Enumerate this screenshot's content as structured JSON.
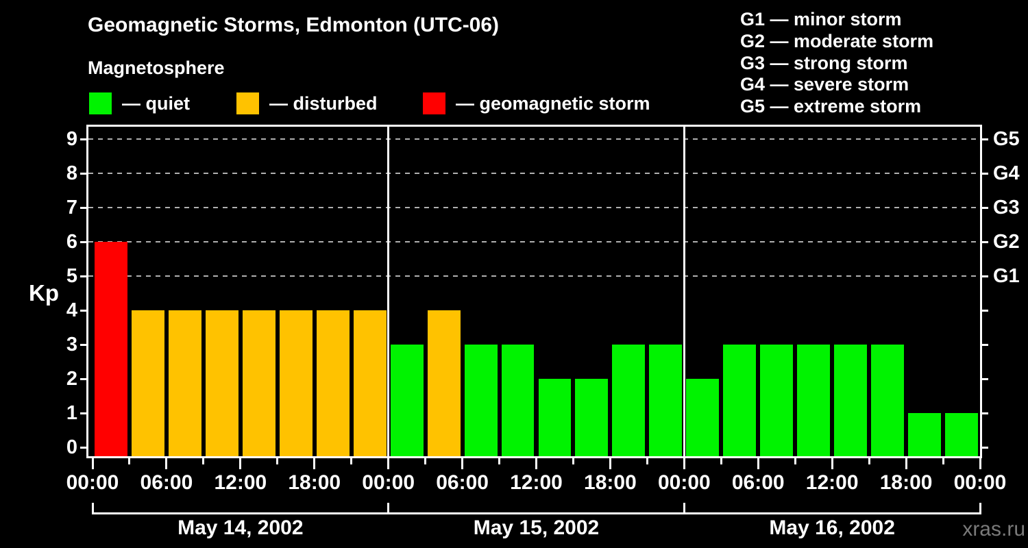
{
  "title": "Geomagnetic Storms, Edmonton (UTC-06)",
  "subtitle": "Magnetosphere",
  "legend": {
    "items": [
      {
        "state": "quiet",
        "label": "— quiet"
      },
      {
        "state": "disturbed",
        "label": "— disturbed"
      },
      {
        "state": "storm",
        "label": "— geomagnetic storm"
      }
    ]
  },
  "g_scale_legend": [
    "G1 — minor storm",
    "G2 — moderate storm",
    "G3 — strong storm",
    "G4 — severe storm",
    "G5 — extreme storm"
  ],
  "watermark": "xras.ru",
  "chart_data": {
    "type": "bar",
    "title": "Geomagnetic Storms, Edmonton (UTC-06)",
    "ylabel": "Kp",
    "ylim": [
      0,
      9
    ],
    "yticks": [
      0,
      1,
      2,
      3,
      4,
      5,
      6,
      7,
      8,
      9
    ],
    "gridlines_at_kp": [
      5,
      6,
      7,
      8,
      9
    ],
    "grid_on": true,
    "right_axis": [
      {
        "kp": 5,
        "label": "G1"
      },
      {
        "kp": 6,
        "label": "G2"
      },
      {
        "kp": 7,
        "label": "G3"
      },
      {
        "kp": 8,
        "label": "G4"
      },
      {
        "kp": 9,
        "label": "G5"
      }
    ],
    "hours_per_bar": 3,
    "major_tick_hours": 6,
    "time_labels_per_day": [
      "00:00",
      "06:00",
      "12:00",
      "18:00"
    ],
    "final_time_label": "00:00",
    "days": [
      {
        "date": "May 14, 2002",
        "values": [
          6,
          4,
          4,
          4,
          4,
          4,
          4,
          4
        ],
        "states": [
          "storm",
          "disturbed",
          "disturbed",
          "disturbed",
          "disturbed",
          "disturbed",
          "disturbed",
          "disturbed"
        ]
      },
      {
        "date": "May 15, 2002",
        "values": [
          3,
          4,
          3,
          3,
          2,
          2,
          3,
          3
        ],
        "states": [
          "quiet",
          "disturbed",
          "quiet",
          "quiet",
          "quiet",
          "quiet",
          "quiet",
          "quiet"
        ]
      },
      {
        "date": "May 16, 2002",
        "values": [
          2,
          3,
          3,
          3,
          3,
          3,
          1,
          1
        ],
        "states": [
          "quiet",
          "quiet",
          "quiet",
          "quiet",
          "quiet",
          "quiet",
          "quiet",
          "quiet"
        ]
      }
    ],
    "state_colors": {
      "quiet": "#00F300",
      "disturbed": "#FFC200",
      "storm": "#FF0000"
    },
    "axis_color": "#ffffff",
    "background_color": "#000000",
    "gridline_color": "#b0b0b0"
  }
}
